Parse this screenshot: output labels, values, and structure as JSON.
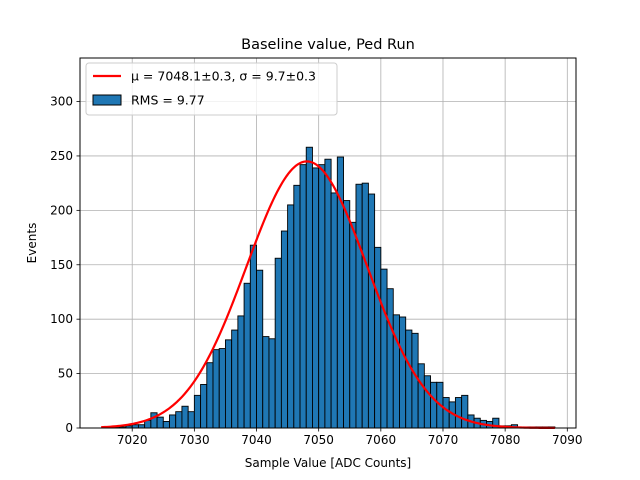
{
  "chart_data": {
    "type": "bar",
    "title": "Baseline value, Ped Run",
    "xlabel": "Sample Value [ADC Counts]",
    "ylabel": "Events",
    "xlim": [
      7011.6,
      7091.4
    ],
    "ylim": [
      0,
      340
    ],
    "xticks": [
      7020,
      7030,
      7040,
      7050,
      7060,
      7070,
      7080,
      7090
    ],
    "yticks": [
      0,
      50,
      100,
      150,
      200,
      250,
      300
    ],
    "grid": true,
    "legend_position": "top-left",
    "histogram": {
      "name": "RMS = 9.77",
      "color": "#1f77b4",
      "edgecolor": "#000000",
      "bin_start": 7015,
      "bin_width": 1,
      "counts": [
        0,
        1,
        1,
        1,
        2,
        3,
        3,
        7,
        14,
        10,
        6,
        12,
        15,
        20,
        15,
        30,
        40,
        60,
        72,
        73,
        81,
        90,
        103,
        133,
        168,
        145,
        84,
        82,
        156,
        181,
        205,
        223,
        242,
        258,
        239,
        242,
        247,
        216,
        249,
        209,
        189,
        224,
        225,
        215,
        166,
        146,
        128,
        104,
        102,
        90,
        87,
        59,
        48,
        42,
        42,
        28,
        24,
        28,
        30,
        12,
        9,
        7,
        6,
        9,
        2,
        2,
        3,
        1,
        1,
        1,
        1,
        1,
        1
      ]
    },
    "fit": {
      "name": "μ = 7048.1±0.3, σ = 9.7±0.3",
      "color": "#ff0000",
      "mu": 7048.1,
      "sigma": 9.7,
      "amplitude": 245,
      "x_range": [
        7015,
        7088
      ]
    }
  }
}
